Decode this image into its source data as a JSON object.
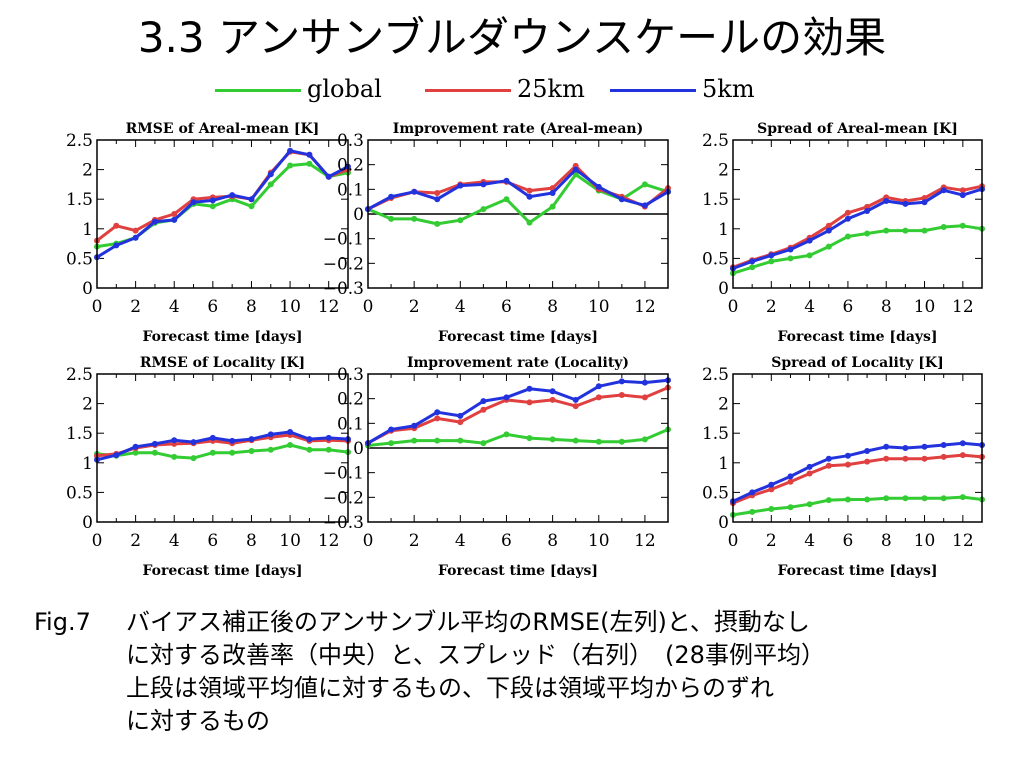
{
  "page": {
    "title": "3.3 アンサンブルダウンスケールの効果"
  },
  "legend": [
    {
      "name": "global",
      "color": "#33cc33"
    },
    {
      "name": "25km",
      "color": "#e04040"
    },
    {
      "name": "5km",
      "color": "#2233dd"
    }
  ],
  "chart_data": [
    {
      "type": "line",
      "title": "RMSE of Areal-mean [K]",
      "xlabel": "Forecast time [days]",
      "ylabel": "",
      "x": [
        0,
        1,
        2,
        3,
        4,
        5,
        6,
        7,
        8,
        9,
        10,
        11,
        12,
        13
      ],
      "xlim": [
        0,
        13
      ],
      "ylim": [
        0,
        2.5
      ],
      "xticks": [
        "0",
        "2",
        "4",
        "6",
        "8",
        "10",
        "12"
      ],
      "yticks": [
        "0",
        "0.5",
        "1",
        "1.5",
        "2",
        "2.5"
      ],
      "series": [
        {
          "name": "global",
          "values": [
            0.7,
            0.75,
            0.85,
            1.1,
            1.15,
            1.42,
            1.38,
            1.5,
            1.38,
            1.75,
            2.07,
            2.1,
            1.88,
            1.95
          ]
        },
        {
          "name": "25km",
          "values": [
            0.8,
            1.05,
            0.97,
            1.15,
            1.25,
            1.5,
            1.53,
            1.55,
            1.5,
            1.95,
            2.3,
            2.25,
            1.88,
            2.0
          ]
        },
        {
          "name": "5km",
          "values": [
            0.52,
            0.72,
            0.85,
            1.12,
            1.15,
            1.45,
            1.48,
            1.57,
            1.5,
            1.92,
            2.32,
            2.25,
            1.88,
            2.05
          ]
        }
      ]
    },
    {
      "type": "line",
      "title": "Improvement rate (Areal-mean)",
      "xlabel": "Forecast time [days]",
      "ylabel": "",
      "x": [
        0,
        1,
        2,
        3,
        4,
        5,
        6,
        7,
        8,
        9,
        10,
        11,
        12,
        13
      ],
      "xlim": [
        0,
        13
      ],
      "ylim": [
        -0.3,
        0.3
      ],
      "zero_line": true,
      "xticks": [
        "0",
        "2",
        "4",
        "6",
        "8",
        "10",
        "12"
      ],
      "yticks": [
        "−0.3",
        "−0.2",
        "−0.1",
        "0",
        "0.1",
        "0.2",
        "0.3"
      ],
      "series": [
        {
          "name": "global",
          "values": [
            0.02,
            -0.02,
            -0.02,
            -0.04,
            -0.025,
            0.02,
            0.06,
            -0.035,
            0.03,
            0.16,
            0.095,
            0.06,
            0.12,
            0.09
          ]
        },
        {
          "name": "25km",
          "values": [
            0.02,
            0.065,
            0.09,
            0.085,
            0.12,
            0.13,
            0.13,
            0.095,
            0.105,
            0.195,
            0.1,
            0.07,
            0.03,
            0.105
          ]
        },
        {
          "name": "5km",
          "values": [
            0.02,
            0.07,
            0.09,
            0.06,
            0.115,
            0.12,
            0.135,
            0.07,
            0.085,
            0.18,
            0.11,
            0.06,
            0.035,
            0.09
          ]
        }
      ]
    },
    {
      "type": "line",
      "title": "Spread of Areal-mean [K]",
      "xlabel": "Forecast time [days]",
      "ylabel": "",
      "x": [
        0,
        1,
        2,
        3,
        4,
        5,
        6,
        7,
        8,
        9,
        10,
        11,
        12,
        13
      ],
      "xlim": [
        0,
        13
      ],
      "ylim": [
        0,
        2.5
      ],
      "xticks": [
        "0",
        "2",
        "4",
        "6",
        "8",
        "10",
        "12"
      ],
      "yticks": [
        "0",
        "0.5",
        "1",
        "1.5",
        "2",
        "2.5"
      ],
      "series": [
        {
          "name": "global",
          "values": [
            0.25,
            0.35,
            0.45,
            0.5,
            0.55,
            0.7,
            0.87,
            0.92,
            0.97,
            0.97,
            0.97,
            1.03,
            1.05,
            1.0
          ]
        },
        {
          "name": "25km",
          "values": [
            0.35,
            0.47,
            0.57,
            0.68,
            0.85,
            1.05,
            1.27,
            1.37,
            1.53,
            1.47,
            1.52,
            1.7,
            1.65,
            1.72
          ]
        },
        {
          "name": "5km",
          "values": [
            0.33,
            0.45,
            0.55,
            0.65,
            0.8,
            0.97,
            1.17,
            1.3,
            1.47,
            1.42,
            1.45,
            1.65,
            1.57,
            1.67
          ]
        }
      ]
    },
    {
      "type": "line",
      "title": "RMSE of Locality [K]",
      "xlabel": "Forecast time [days]",
      "ylabel": "",
      "x": [
        0,
        1,
        2,
        3,
        4,
        5,
        6,
        7,
        8,
        9,
        10,
        11,
        12,
        13
      ],
      "xlim": [
        0,
        13
      ],
      "ylim": [
        0,
        2.5
      ],
      "xticks": [
        "0",
        "2",
        "4",
        "6",
        "8",
        "10",
        "12"
      ],
      "yticks": [
        "0",
        "0.5",
        "1",
        "1.5",
        "2",
        "2.5"
      ],
      "series": [
        {
          "name": "global",
          "values": [
            1.15,
            1.12,
            1.17,
            1.17,
            1.1,
            1.08,
            1.17,
            1.17,
            1.2,
            1.22,
            1.3,
            1.22,
            1.22,
            1.18
          ]
        },
        {
          "name": "25km",
          "values": [
            1.12,
            1.15,
            1.25,
            1.3,
            1.32,
            1.33,
            1.37,
            1.33,
            1.38,
            1.43,
            1.47,
            1.37,
            1.38,
            1.37
          ]
        },
        {
          "name": "5km",
          "values": [
            1.05,
            1.13,
            1.27,
            1.32,
            1.38,
            1.35,
            1.42,
            1.37,
            1.4,
            1.48,
            1.52,
            1.4,
            1.42,
            1.4
          ]
        }
      ]
    },
    {
      "type": "line",
      "title": "Improvement rate (Locality)",
      "xlabel": "Forecast time [days]",
      "ylabel": "",
      "x": [
        0,
        1,
        2,
        3,
        4,
        5,
        6,
        7,
        8,
        9,
        10,
        11,
        12,
        13
      ],
      "xlim": [
        0,
        13
      ],
      "ylim": [
        -0.3,
        0.3
      ],
      "zero_line": true,
      "xticks": [
        "0",
        "2",
        "4",
        "6",
        "8",
        "10",
        "12"
      ],
      "yticks": [
        "−0.3",
        "−0.2",
        "−0.1",
        "0",
        "0.1",
        "0.2",
        "0.3"
      ],
      "series": [
        {
          "name": "global",
          "values": [
            0.01,
            0.02,
            0.03,
            0.03,
            0.03,
            0.02,
            0.055,
            0.04,
            0.035,
            0.03,
            0.025,
            0.025,
            0.035,
            0.075
          ]
        },
        {
          "name": "25km",
          "values": [
            0.02,
            0.07,
            0.08,
            0.12,
            0.105,
            0.155,
            0.195,
            0.185,
            0.195,
            0.17,
            0.205,
            0.215,
            0.205,
            0.245
          ]
        },
        {
          "name": "5km",
          "values": [
            0.02,
            0.075,
            0.09,
            0.145,
            0.13,
            0.19,
            0.205,
            0.24,
            0.23,
            0.195,
            0.25,
            0.27,
            0.265,
            0.275
          ]
        }
      ]
    },
    {
      "type": "line",
      "title": "Spread of Locality [K]",
      "xlabel": "Forecast time [days]",
      "ylabel": "",
      "x": [
        0,
        1,
        2,
        3,
        4,
        5,
        6,
        7,
        8,
        9,
        10,
        11,
        12,
        13
      ],
      "xlim": [
        0,
        13
      ],
      "ylim": [
        0,
        2.5
      ],
      "xticks": [
        "0",
        "2",
        "4",
        "6",
        "8",
        "10",
        "12"
      ],
      "yticks": [
        "0",
        "0.5",
        "1",
        "1.5",
        "2",
        "2.5"
      ],
      "series": [
        {
          "name": "global",
          "values": [
            0.12,
            0.17,
            0.22,
            0.25,
            0.3,
            0.37,
            0.38,
            0.38,
            0.4,
            0.4,
            0.4,
            0.4,
            0.42,
            0.38
          ]
        },
        {
          "name": "25km",
          "values": [
            0.32,
            0.45,
            0.55,
            0.68,
            0.82,
            0.95,
            0.97,
            1.02,
            1.07,
            1.07,
            1.07,
            1.1,
            1.13,
            1.1
          ]
        },
        {
          "name": "5km",
          "values": [
            0.35,
            0.5,
            0.63,
            0.77,
            0.93,
            1.07,
            1.12,
            1.2,
            1.27,
            1.25,
            1.27,
            1.3,
            1.33,
            1.3
          ]
        }
      ]
    }
  ],
  "caption": {
    "label": "Fig.7",
    "lines": [
      "バイアス補正後のアンサンブル平均のRMSE(左列)と、摂動なし",
      "に対する改善率（中央）と、スプレッド（右列）　(28事例平均）",
      "上段は領域平均値に対するもの、下段は領域平均からのずれ",
      "に対するもの"
    ]
  }
}
